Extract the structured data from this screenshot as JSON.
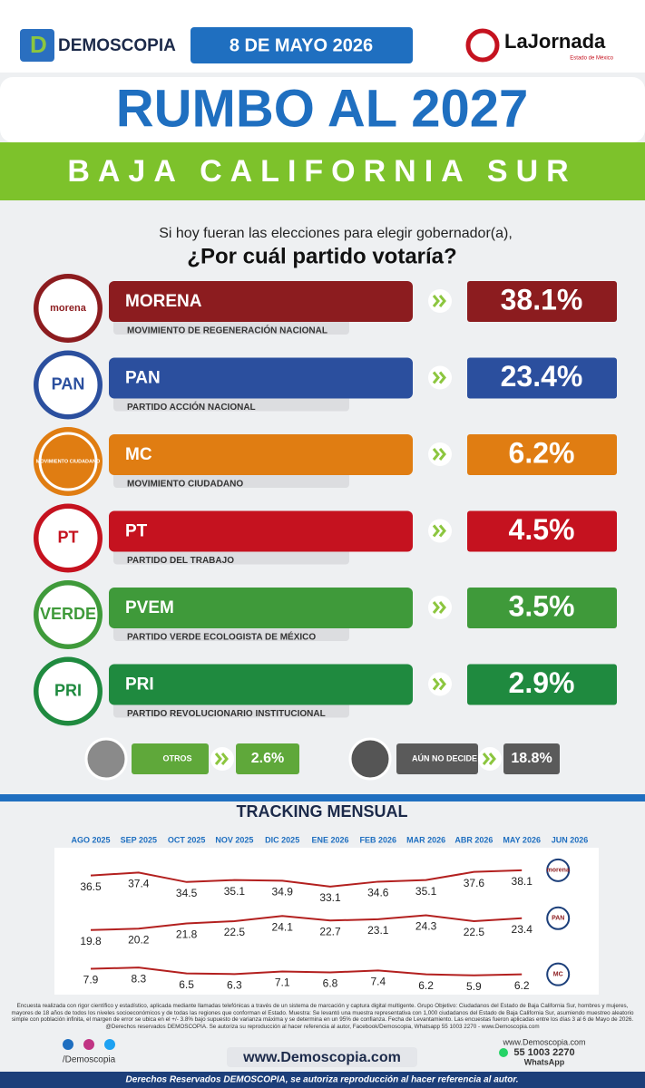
{
  "header": {
    "brand": "DEMOSCOPIA",
    "date": "8 DE MAYO 2026",
    "newspaper": "LaJornada",
    "newspaper_sub": "Estado de México"
  },
  "title": "RUMBO AL 2027",
  "subtitle": "BAJA CALIFORNIA SUR",
  "question": {
    "line1": "Si hoy fueran las elecciones para elegir gobernador(a),",
    "line2": "¿Por cuál partido votaría?"
  },
  "results": {
    "logos": [
      "morena",
      "PAN",
      "MOVIMIENTO CIUDADANO",
      "PT",
      "VERDE",
      "PRI"
    ],
    "categories": [
      "MORENA",
      "PAN",
      "MC",
      "PT",
      "PVEM",
      "PRI"
    ],
    "names": [
      "MOVIMIENTO DE REGENERACIÓN NACIONAL",
      "PARTIDO ACCIÓN NACIONAL",
      "MOVIMIENTO CIUDADANO",
      "PARTIDO DEL TRABAJO",
      "PARTIDO VERDE ECOLOGISTA DE MÉXICO",
      "PARTIDO REVOLUCIONARIO INSTITUCIONAL"
    ],
    "values": [
      38.1,
      23.4,
      6.2,
      4.5,
      3.5,
      2.9
    ],
    "value_labels": [
      "38.1%",
      "23.4%",
      "6.2%",
      "4.5%",
      "3.5%",
      "2.9%"
    ],
    "colors": [
      "#8c1c1f",
      "#2b4f9e",
      "#e07d12",
      "#c5121f",
      "#3f9a3a",
      "#1f8a3f"
    ]
  },
  "others": {
    "categories": [
      "OTROS",
      "AÚN NO DECIDE"
    ],
    "values": [
      2.6,
      18.8
    ],
    "value_labels": [
      "2.6%",
      "18.8%"
    ],
    "colors": [
      "#5fa83a",
      "#5a5a5a"
    ]
  },
  "chart_data": {
    "type": "line",
    "title": "TRACKING MENSUAL",
    "categories": [
      "AGO 2025",
      "SEP 2025",
      "OCT 2025",
      "NOV 2025",
      "DIC 2025",
      "ENE 2026",
      "FEB 2026",
      "MAR 2026",
      "ABR 2026",
      "MAY 2026",
      "JUN 2026"
    ],
    "series": [
      {
        "name": "morena",
        "color": "#b3201f",
        "values": [
          36.5,
          37.4,
          34.5,
          35.1,
          34.9,
          33.1,
          34.6,
          35.1,
          37.6,
          38.1,
          null
        ]
      },
      {
        "name": "PAN",
        "color": "#b3201f",
        "values": [
          19.8,
          20.2,
          21.8,
          22.5,
          24.1,
          22.7,
          23.1,
          24.3,
          22.5,
          23.4,
          null
        ]
      },
      {
        "name": "MC",
        "color": "#b3201f",
        "values": [
          7.9,
          8.3,
          6.5,
          6.3,
          7.1,
          6.8,
          7.4,
          6.2,
          5.9,
          6.2,
          null
        ]
      }
    ],
    "ylim": [
      0,
      45
    ]
  },
  "footer": {
    "disclaimer": "Encuesta realizada con rigor científico y estadístico, aplicada mediante llamadas telefónicas a través de un sistema de marcación y captura digital multigente. Grupo Objetivo: Ciudadanos del Estado de Baja California Sur, hombres y mujeres, mayores de 18 años de todos los niveles socioeconómicos y de todas las regiones que conforman el Estado. Muestra: Se levantó una muestra representativa con 1,000 ciudadanos del Estado de Baja California Sur, asumiendo muestreo aleatorio simple con población infinita, el margen de error se ubica en el +/- 3.8% bajo supuesto de varianza máxima y se determina en un 95% de confianza. Fecha de Levantamiento. Las encuestas fueron aplicadas entre los días 3 al 6 de Mayo de 2026. @Derechos reservados DEMOSCOPIA. Se autoriza su reproducción al hacer referencia al autor, Facebook/Demoscopia, Whatsapp 55 1003 2270 - www.Demoscopia.com",
    "social": "/Demoscopia",
    "website": "www.Demoscopia.com",
    "contact_web": "www.Demoscopia.com",
    "phone": "55 1003 2270",
    "whatsapp": "WhatsApp",
    "rights": "Derechos Reservados DEMOSCOPIA, se autoriza reproducción al hacer referencia al autor."
  }
}
